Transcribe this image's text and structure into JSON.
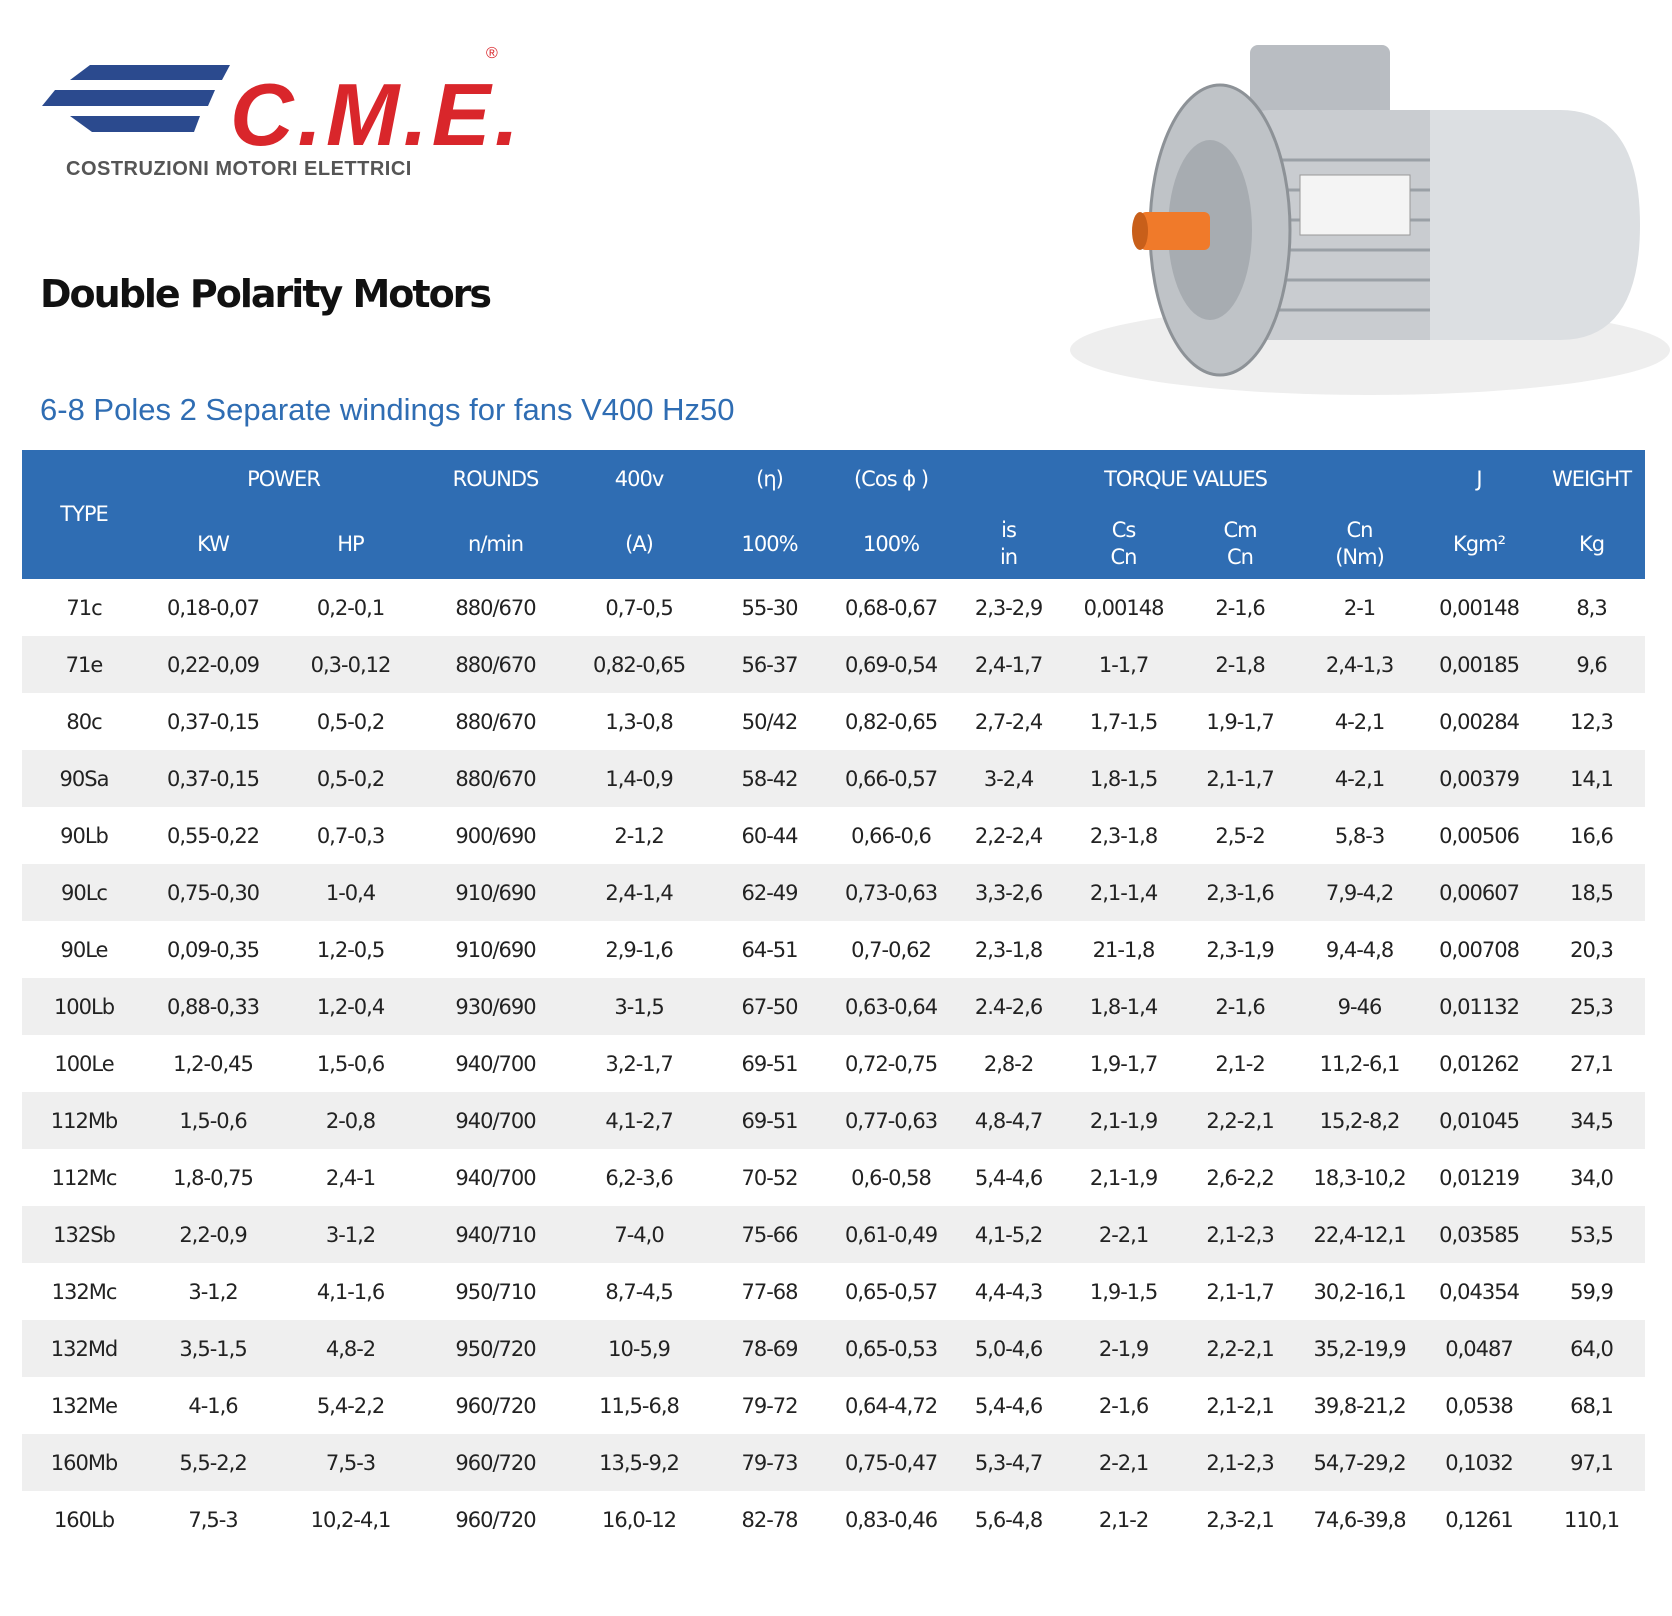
{
  "header": {
    "logo_text": "C.M.E.",
    "registered": "®",
    "logo_subtitle": "COSTRUZIONI MOTORI ELETTRICI"
  },
  "title": "Double Polarity Motors",
  "subtitle": "6-8 Poles 2 Separate windings for fans V400 Hz50",
  "table": {
    "header_row1": [
      "TYPE",
      "POWER",
      "ROUNDS",
      "400v",
      "(η)",
      "(Cos ϕ )",
      "TORQUE VALUES",
      "J",
      "WEIGHT"
    ],
    "header_row2": [
      [
        "KW"
      ],
      [
        "HP"
      ],
      [
        "n/min"
      ],
      [
        "(A)"
      ],
      [
        "100%"
      ],
      [
        "100%"
      ],
      [
        "is",
        "in"
      ],
      [
        "Cs",
        "Cn"
      ],
      [
        "Cm",
        "Cn"
      ],
      [
        "Cn",
        "(Nm)"
      ],
      [
        "Kgm²"
      ],
      [
        "Kg"
      ]
    ],
    "rows": [
      [
        "71c",
        "0,18-0,07",
        "0,2-0,1",
        "880/670",
        "0,7-0,5",
        "55-30",
        "0,68-0,67",
        "2,3-2,9",
        "0,00148",
        "2-1,6",
        "2-1",
        "0,00148",
        "8,3"
      ],
      [
        "71e",
        "0,22-0,09",
        "0,3-0,12",
        "880/670",
        "0,82-0,65",
        "56-37",
        "0,69-0,54",
        "2,4-1,7",
        "1-1,7",
        "2-1,8",
        "2,4-1,3",
        "0,00185",
        "9,6"
      ],
      [
        "80c",
        "0,37-0,15",
        "0,5-0,2",
        "880/670",
        "1,3-0,8",
        "50/42",
        "0,82-0,65",
        "2,7-2,4",
        "1,7-1,5",
        "1,9-1,7",
        "4-2,1",
        "0,00284",
        "12,3"
      ],
      [
        "90Sa",
        "0,37-0,15",
        "0,5-0,2",
        "880/670",
        "1,4-0,9",
        "58-42",
        "0,66-0,57",
        "3-2,4",
        "1,8-1,5",
        "2,1-1,7",
        "4-2,1",
        "0,00379",
        "14,1"
      ],
      [
        "90Lb",
        "0,55-0,22",
        "0,7-0,3",
        "900/690",
        "2-1,2",
        "60-44",
        "0,66-0,6",
        "2,2-2,4",
        "2,3-1,8",
        "2,5-2",
        "5,8-3",
        "0,00506",
        "16,6"
      ],
      [
        "90Lc",
        "0,75-0,30",
        "1-0,4",
        "910/690",
        "2,4-1,4",
        "62-49",
        "0,73-0,63",
        "3,3-2,6",
        "2,1-1,4",
        "2,3-1,6",
        "7,9-4,2",
        "0,00607",
        "18,5"
      ],
      [
        "90Le",
        "0,09-0,35",
        "1,2-0,5",
        "910/690",
        "2,9-1,6",
        "64-51",
        "0,7-0,62",
        "2,3-1,8",
        "21-1,8",
        "2,3-1,9",
        "9,4-4,8",
        "0,00708",
        "20,3"
      ],
      [
        "100Lb",
        "0,88-0,33",
        "1,2-0,4",
        "930/690",
        "3-1,5",
        "67-50",
        "0,63-0,64",
        "2.4-2,6",
        "1,8-1,4",
        "2-1,6",
        "9-46",
        "0,01132",
        "25,3"
      ],
      [
        "100Le",
        "1,2-0,45",
        "1,5-0,6",
        "940/700",
        "3,2-1,7",
        "69-51",
        "0,72-0,75",
        "2,8-2",
        "1,9-1,7",
        "2,1-2",
        "11,2-6,1",
        "0,01262",
        "27,1"
      ],
      [
        "112Mb",
        "1,5-0,6",
        "2-0,8",
        "940/700",
        "4,1-2,7",
        "69-51",
        "0,77-0,63",
        "4,8-4,7",
        "2,1-1,9",
        "2,2-2,1",
        "15,2-8,2",
        "0,01045",
        "34,5"
      ],
      [
        "112Mc",
        "1,8-0,75",
        "2,4-1",
        "940/700",
        "6,2-3,6",
        "70-52",
        "0,6-0,58",
        "5,4-4,6",
        "2,1-1,9",
        "2,6-2,2",
        "18,3-10,2",
        "0,01219",
        "34,0"
      ],
      [
        "132Sb",
        "2,2-0,9",
        "3-1,2",
        "940/710",
        "7-4,0",
        "75-66",
        "0,61-0,49",
        "4,1-5,2",
        "2-2,1",
        "2,1-2,3",
        "22,4-12,1",
        "0,03585",
        "53,5"
      ],
      [
        "132Mc",
        "3-1,2",
        "4,1-1,6",
        "950/710",
        "8,7-4,5",
        "77-68",
        "0,65-0,57",
        "4,4-4,3",
        "1,9-1,5",
        "2,1-1,7",
        "30,2-16,1",
        "0,04354",
        "59,9"
      ],
      [
        "132Md",
        "3,5-1,5",
        "4,8-2",
        "950/720",
        "10-5,9",
        "78-69",
        "0,65-0,53",
        "5,0-4,6",
        "2-1,9",
        "2,2-2,1",
        "35,2-19,9",
        "0,0487",
        "64,0"
      ],
      [
        "132Me",
        "4-1,6",
        "5,4-2,2",
        "960/720",
        "11,5-6,8",
        "79-72",
        "0,64-4,72",
        "5,4-4,6",
        "2-1,6",
        "2,1-2,1",
        "39,8-21,2",
        "0,0538",
        "68,1"
      ],
      [
        "160Mb",
        "5,5-2,2",
        "7,5-3",
        "960/720",
        "13,5-9,2",
        "79-73",
        "0,75-0,47",
        "5,3-4,7",
        "2-2,1",
        "2,1-2,3",
        "54,7-29,2",
        "0,1032",
        "97,1"
      ],
      [
        "160Lb",
        "7,5-3",
        "10,2-4,1",
        "960/720",
        "16,0-12",
        "82-78",
        "0,83-0,46",
        "5,6-4,8",
        "2,1-2",
        "2,3-2,1",
        "74,6-39,8",
        "0,1261",
        "110,1"
      ]
    ]
  }
}
